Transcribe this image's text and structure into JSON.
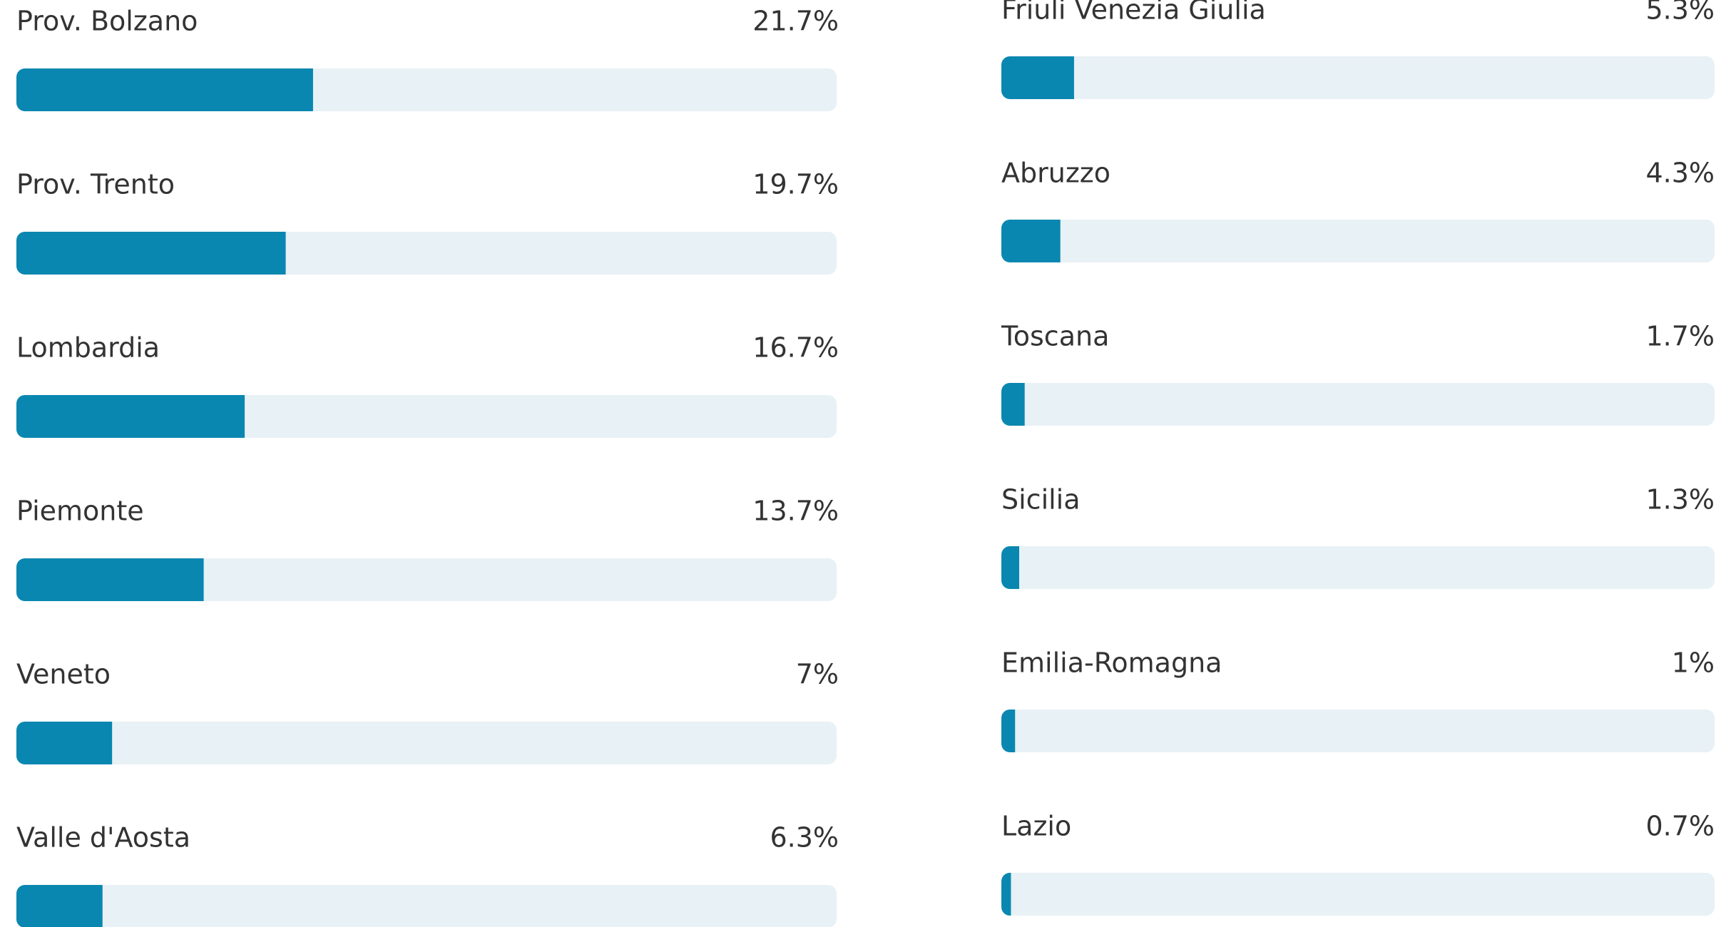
{
  "chart_data": [
    {
      "type": "hbar",
      "color": "#0a87b0",
      "track_color": "#e8f1f5",
      "xlim": [
        0,
        60
      ],
      "categories": [
        "Prov. Bolzano",
        "Prov. Trento",
        "Lombardia",
        "Piemonte",
        "Veneto",
        "Valle d'Aosta"
      ],
      "values": [
        21.7,
        19.7,
        16.7,
        13.7,
        7,
        6.3
      ],
      "value_labels": [
        "21.7%",
        "19.7%",
        "16.7%",
        "13.7%",
        "7%",
        "6.3%"
      ]
    },
    {
      "type": "hbar",
      "color": "#0a87b0",
      "track_color": "#e8f1f5",
      "xlim": [
        0,
        52
      ],
      "categories": [
        "Friuli Venezia Giulia",
        "Abruzzo",
        "Toscana",
        "Sicilia",
        "Emilia-Romagna",
        "Lazio"
      ],
      "values": [
        5.3,
        4.3,
        1.7,
        1.3,
        1,
        0.7
      ],
      "value_labels": [
        "5.3%",
        "4.3%",
        "1.7%",
        "1.3%",
        "1%",
        "0.7%"
      ]
    }
  ]
}
